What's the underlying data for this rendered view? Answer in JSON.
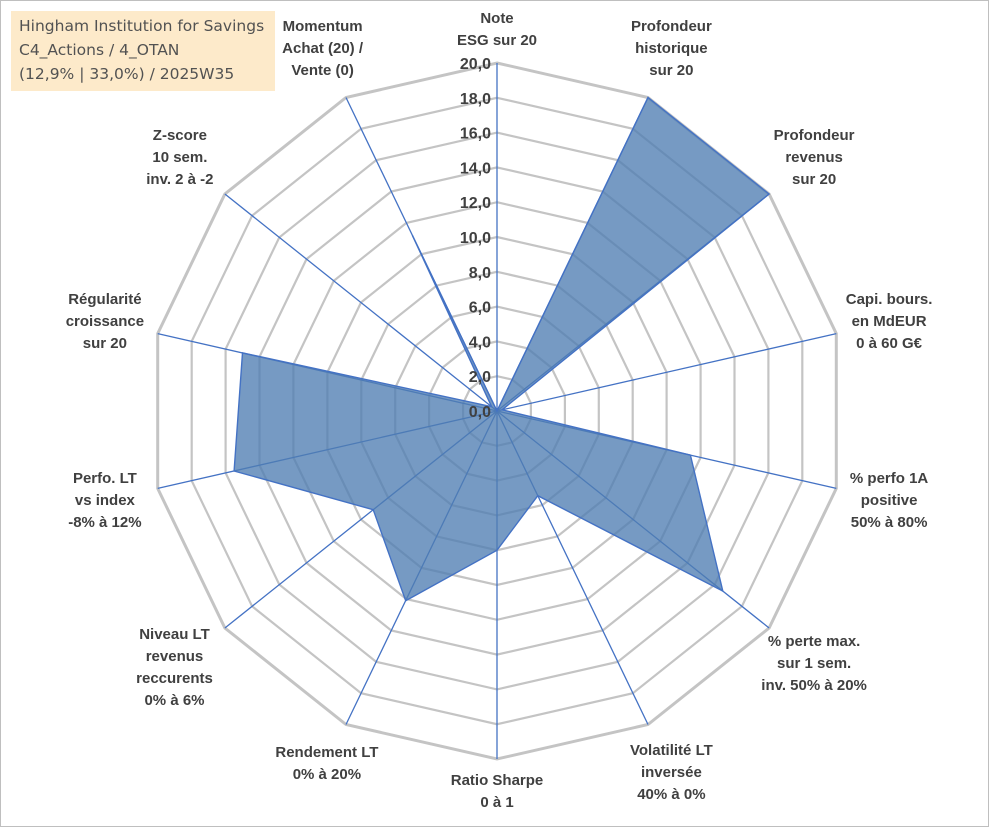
{
  "colors": {
    "grid": "#c4c4c4",
    "axis": "#4472c4",
    "fill": "#4f7db2",
    "text": "#404040",
    "title_bg": "#fde9c6"
  },
  "title": {
    "line1": "Hingham Institution for Savings",
    "line2": "C4_Actions / 4_OTAN",
    "line3": "(12,9% | 33,0%) / 2025W35"
  },
  "chart_data": {
    "type": "radar",
    "rmin": 0,
    "rmax": 20,
    "tick_step": 2,
    "tick_labels": [
      "0,0",
      "2,0",
      "4,0",
      "6,0",
      "8,0",
      "10,0",
      "12,0",
      "14,0",
      "16,0",
      "18,0",
      "20,0"
    ],
    "grid": true,
    "axes": [
      {
        "label": "Note\nESG sur 20",
        "value": 0
      },
      {
        "label": "Profondeur\nhistorique\nsur 20",
        "value": 20
      },
      {
        "label": "Profondeur\nrevenus\nsur 20",
        "value": 20
      },
      {
        "label": "Capi. bours.\nen MdEUR\n0 à 60 G€",
        "value": 0.3
      },
      {
        "label": "% perfo 1A\npositive\n50% à 80%",
        "value": 11.4
      },
      {
        "label": "% perte max.\nsur 1 sem.\ninv. 50% à 20%",
        "value": 16.6
      },
      {
        "label": "Volatilité LT\ninversée\n40% à 0%",
        "value": 5.4
      },
      {
        "label": "Ratio Sharpe\n0 à 1",
        "value": 8.0
      },
      {
        "label": "Rendement LT\n0% à 20%",
        "value": 12.1
      },
      {
        "label": "Niveau LT\nrevenus\nreccurents\n0% à 6%",
        "value": 9.1
      },
      {
        "label": "Perfo. LT\nvs index\n-8% à 12%",
        "value": 15.5
      },
      {
        "label": "Régularité\ncroissance\nsur 20",
        "value": 15.0
      },
      {
        "label": "Z-score\n10 sem.\ninv. 2 à -2",
        "value": 0.4
      },
      {
        "label": "Momentum\nAchat (20) /\nVente (0)",
        "value": 11.2
      }
    ]
  }
}
